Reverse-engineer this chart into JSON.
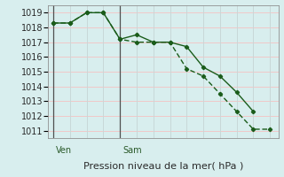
{
  "title": "Pression niveau de la mer( hPa )",
  "bg_color": "#d8eeee",
  "grid_color_v": "#c8d8d8",
  "grid_color_h": "#f0c8c8",
  "line_color": "#1a5c1a",
  "ylim": [
    1010.5,
    1019.5
  ],
  "yticks": [
    1011,
    1012,
    1013,
    1014,
    1015,
    1016,
    1017,
    1018,
    1019
  ],
  "vline_positions": [
    0,
    4
  ],
  "vline_labels": [
    "Ven",
    "Sam"
  ],
  "series1_x": [
    0,
    1,
    2,
    3,
    4,
    5,
    6,
    7,
    8,
    9,
    10,
    11,
    12
  ],
  "series1_y": [
    1018.3,
    1018.3,
    1019.0,
    1019.0,
    1017.2,
    1017.5,
    1017.0,
    1017.0,
    1016.7,
    1015.3,
    1014.7,
    1013.6,
    1012.3
  ],
  "series2_x": [
    0,
    1,
    2,
    3,
    4,
    5,
    6,
    7,
    8,
    9,
    10,
    11,
    12,
    13
  ],
  "series2_y": [
    1018.3,
    1018.3,
    1019.0,
    1019.0,
    1017.2,
    1017.0,
    1017.0,
    1017.0,
    1015.2,
    1014.7,
    1013.5,
    1012.3,
    1011.1,
    1011.1
  ],
  "xlim": [
    -0.3,
    13.5
  ],
  "label_fontsize": 7.0,
  "title_fontsize": 8.0
}
